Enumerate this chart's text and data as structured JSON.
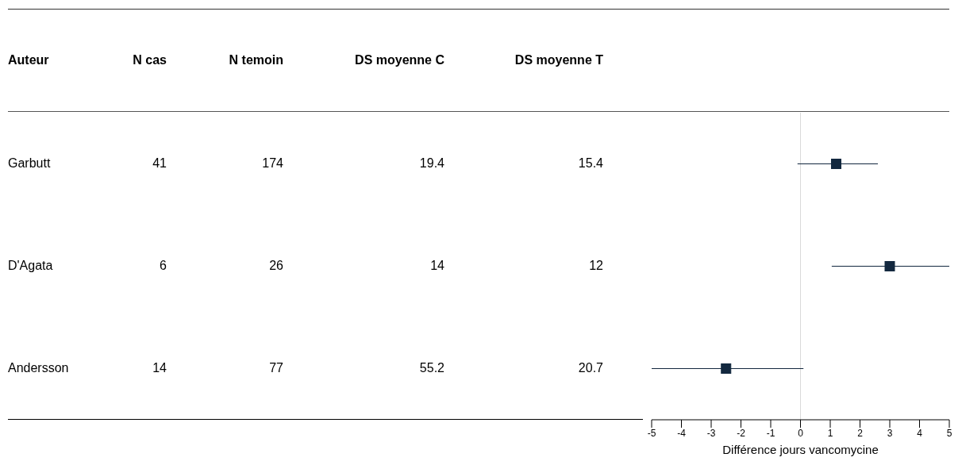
{
  "chart_data": [
    {
      "type": "other",
      "annotations": [
        "Auteur",
        "N cas",
        "N temoin",
        "DS moyenne C",
        "DS moyenne T",
        "Garbutt",
        "41",
        "174",
        "19.4",
        "15.4",
        "D'Agata",
        "6",
        "26",
        "14",
        "12",
        "Andersson",
        "14",
        "77",
        "55.2",
        "20.7"
      ]
    },
    {
      "type": "scatter",
      "orientation": "horizontal",
      "categories": [
        null,
        null,
        null
      ],
      "values": [
        1.2,
        3.0,
        -2.5
      ],
      "errors": [
        [
          -0.1,
          2.6
        ],
        [
          1.05,
          5
        ],
        [
          -5,
          0.1
        ]
      ],
      "color": "#13283f",
      "marker": "square",
      "xlim": [
        -5,
        5
      ],
      "xticks": [
        -5,
        -4,
        -3,
        -2,
        -1,
        0,
        1,
        2,
        3,
        4,
        5
      ],
      "xlabel": "Différence jours vancomycine",
      "tick_labels": "x",
      "grid": false,
      "ref_lines": [
        {
          "axis": "x",
          "value": 0,
          "color": "#d9d9d9"
        }
      ]
    }
  ]
}
